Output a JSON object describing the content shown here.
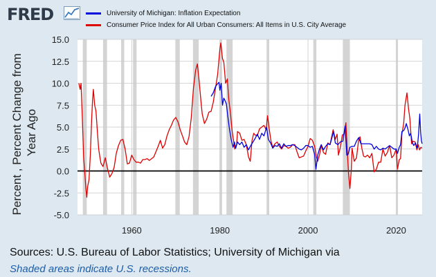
{
  "header": {
    "logo_text": "FRED",
    "logo_icon": "line-graph-icon"
  },
  "footer": {
    "sources": "Sources: U.S. Bureau of Labor Statistics; University of Michigan via",
    "recession_note": "Shaded areas indicate U.S. recessions."
  },
  "colors": {
    "background": "#dde8f0",
    "plot_background": "#ffffff",
    "recession_shade": "#d4d4d4",
    "grid": "#c8c8c8",
    "series_inflation_expectation": "#0000dd",
    "series_cpi": "#dd0000",
    "zero_line": "#000000"
  },
  "chart_data": {
    "type": "line",
    "title": "",
    "xlabel": "",
    "ylabel_lines": [
      "Percent , Percent Change from",
      "Year Ago"
    ],
    "xlim": [
      1947.7,
      2025.9
    ],
    "ylim": [
      -5.0,
      15.0
    ],
    "x_ticks": [
      1960,
      1980,
      2000,
      2020
    ],
    "x_tick_labels": [
      "1960",
      "1980",
      "2000",
      "2020"
    ],
    "y_ticks": [
      -5.0,
      -2.5,
      0.0,
      2.5,
      5.0,
      7.5,
      10.0,
      12.5,
      15.0
    ],
    "y_tick_labels": [
      "-5.0",
      "-2.5",
      "0.0",
      "2.5",
      "5.0",
      "7.5",
      "10.0",
      "12.5",
      "15.0"
    ],
    "grid": true,
    "reference_line": 0,
    "legend_position": "top",
    "recessions": [
      [
        1948.9,
        1949.8
      ],
      [
        1953.5,
        1954.4
      ],
      [
        1957.6,
        1958.3
      ],
      [
        1960.3,
        1961.1
      ],
      [
        1969.9,
        1970.9
      ],
      [
        1973.9,
        1975.2
      ],
      [
        1980.0,
        1980.5
      ],
      [
        1981.5,
        1982.9
      ],
      [
        1990.6,
        1991.2
      ],
      [
        2001.2,
        2001.9
      ],
      [
        2007.9,
        2009.5
      ],
      [
        2020.1,
        2020.4
      ]
    ],
    "series": [
      {
        "name": "University of Michigan: Inflation Expectation",
        "color": "#0000dd",
        "points": [
          [
            1978.0,
            8.5
          ],
          [
            1978.5,
            8.9
          ],
          [
            1979.0,
            9.6
          ],
          [
            1979.4,
            9.9
          ],
          [
            1979.8,
            10.1
          ],
          [
            1980.0,
            9.2
          ],
          [
            1980.3,
            10.0
          ],
          [
            1980.6,
            7.5
          ],
          [
            1980.9,
            8.3
          ],
          [
            1981.2,
            8.0
          ],
          [
            1981.5,
            7.6
          ],
          [
            1981.8,
            6.2
          ],
          [
            1982.2,
            4.7
          ],
          [
            1982.6,
            3.5
          ],
          [
            1983.0,
            2.7
          ],
          [
            1983.3,
            3.3
          ],
          [
            1983.6,
            2.6
          ],
          [
            1984.0,
            3.3
          ],
          [
            1984.5,
            3.0
          ],
          [
            1985.0,
            3.3
          ],
          [
            1985.5,
            2.7
          ],
          [
            1986.0,
            3.0
          ],
          [
            1986.5,
            2.4
          ],
          [
            1987.0,
            2.9
          ],
          [
            1987.5,
            3.3
          ],
          [
            1988.0,
            3.7
          ],
          [
            1988.5,
            4.2
          ],
          [
            1989.0,
            3.6
          ],
          [
            1989.5,
            4.3
          ],
          [
            1990.0,
            4.0
          ],
          [
            1990.6,
            5.0
          ],
          [
            1991.0,
            3.6
          ],
          [
            1991.5,
            3.2
          ],
          [
            1992.0,
            2.6
          ],
          [
            1992.5,
            2.9
          ],
          [
            1993.0,
            2.8
          ],
          [
            1993.5,
            3.1
          ],
          [
            1994.0,
            2.6
          ],
          [
            1994.5,
            3.1
          ],
          [
            1995.0,
            2.8
          ],
          [
            1995.5,
            2.9
          ],
          [
            1996.0,
            2.9
          ],
          [
            1996.5,
            3.0
          ],
          [
            1997.0,
            2.9
          ],
          [
            1997.5,
            2.7
          ],
          [
            1998.0,
            2.5
          ],
          [
            1998.5,
            2.4
          ],
          [
            1999.0,
            2.6
          ],
          [
            1999.5,
            2.9
          ],
          [
            2000.0,
            2.9
          ],
          [
            2000.5,
            2.7
          ],
          [
            2001.0,
            2.8
          ],
          [
            2001.5,
            1.9
          ],
          [
            2001.8,
            0.2
          ],
          [
            2002.2,
            1.8
          ],
          [
            2002.6,
            2.5
          ],
          [
            2003.0,
            3.0
          ],
          [
            2003.5,
            2.4
          ],
          [
            2004.0,
            2.8
          ],
          [
            2004.5,
            3.1
          ],
          [
            2005.0,
            3.0
          ],
          [
            2005.8,
            4.5
          ],
          [
            2006.2,
            3.2
          ],
          [
            2006.8,
            3.0
          ],
          [
            2007.3,
            3.3
          ],
          [
            2007.9,
            3.4
          ],
          [
            2008.4,
            5.1
          ],
          [
            2008.8,
            1.8
          ],
          [
            2009.1,
            1.9
          ],
          [
            2009.5,
            2.7
          ],
          [
            2010.0,
            2.8
          ],
          [
            2010.5,
            2.8
          ],
          [
            2011.0,
            3.4
          ],
          [
            2011.5,
            3.8
          ],
          [
            2012.0,
            3.1
          ],
          [
            2012.5,
            3.1
          ],
          [
            2013.0,
            3.1
          ],
          [
            2013.5,
            3.1
          ],
          [
            2014.0,
            3.1
          ],
          [
            2014.5,
            3.0
          ],
          [
            2015.0,
            2.5
          ],
          [
            2015.5,
            2.8
          ],
          [
            2016.0,
            2.5
          ],
          [
            2016.5,
            2.4
          ],
          [
            2017.0,
            2.6
          ],
          [
            2017.5,
            2.5
          ],
          [
            2018.0,
            2.7
          ],
          [
            2018.5,
            2.9
          ],
          [
            2019.0,
            2.7
          ],
          [
            2019.5,
            2.5
          ],
          [
            2020.0,
            2.5
          ],
          [
            2020.3,
            2.0
          ],
          [
            2020.7,
            2.7
          ],
          [
            2021.0,
            3.0
          ],
          [
            2021.3,
            4.5
          ],
          [
            2021.7,
            4.6
          ],
          [
            2022.0,
            4.9
          ],
          [
            2022.3,
            5.4
          ],
          [
            2022.7,
            4.7
          ],
          [
            2023.0,
            4.0
          ],
          [
            2023.3,
            4.3
          ],
          [
            2023.7,
            3.2
          ],
          [
            2024.0,
            2.9
          ],
          [
            2024.4,
            3.2
          ],
          [
            2024.8,
            2.6
          ],
          [
            2025.1,
            4.3
          ],
          [
            2025.35,
            6.5
          ],
          [
            2025.55,
            4.4
          ],
          [
            2025.75,
            3.4
          ],
          [
            2025.9,
            3.1
          ]
        ]
      },
      {
        "name": "Consumer Price Index for All Urban Consumers: All Items in U.S. City Average",
        "color": "#dd0000",
        "points": [
          [
            1948.0,
            10.0
          ],
          [
            1948.3,
            9.3
          ],
          [
            1948.5,
            10.0
          ],
          [
            1948.8,
            6.0
          ],
          [
            1949.1,
            1.5
          ],
          [
            1949.4,
            -0.5
          ],
          [
            1949.6,
            -2.0
          ],
          [
            1949.8,
            -3.0
          ],
          [
            1950.0,
            -1.8
          ],
          [
            1950.3,
            -1.0
          ],
          [
            1950.6,
            1.8
          ],
          [
            1950.9,
            5.8
          ],
          [
            1951.1,
            8.0
          ],
          [
            1951.3,
            9.3
          ],
          [
            1951.6,
            7.5
          ],
          [
            1951.9,
            6.8
          ],
          [
            1952.2,
            4.5
          ],
          [
            1952.5,
            2.5
          ],
          [
            1952.8,
            1.5
          ],
          [
            1953.0,
            0.9
          ],
          [
            1953.5,
            0.5
          ],
          [
            1954.0,
            1.5
          ],
          [
            1954.5,
            0.3
          ],
          [
            1955.0,
            -0.7
          ],
          [
            1955.5,
            -0.3
          ],
          [
            1956.0,
            0.4
          ],
          [
            1956.5,
            2.0
          ],
          [
            1957.0,
            2.9
          ],
          [
            1957.5,
            3.5
          ],
          [
            1958.0,
            3.6
          ],
          [
            1958.5,
            2.5
          ],
          [
            1959.0,
            0.8
          ],
          [
            1959.5,
            0.9
          ],
          [
            1960.0,
            1.8
          ],
          [
            1960.5,
            1.3
          ],
          [
            1961.0,
            1.0
          ],
          [
            1961.5,
            1.0
          ],
          [
            1962.0,
            0.9
          ],
          [
            1962.5,
            1.3
          ],
          [
            1963.0,
            1.3
          ],
          [
            1963.5,
            1.4
          ],
          [
            1964.0,
            1.2
          ],
          [
            1965.0,
            1.6
          ],
          [
            1966.0,
            2.8
          ],
          [
            1966.5,
            3.5
          ],
          [
            1967.0,
            2.6
          ],
          [
            1967.5,
            3.0
          ],
          [
            1968.0,
            4.0
          ],
          [
            1968.5,
            4.7
          ],
          [
            1969.0,
            5.2
          ],
          [
            1969.5,
            5.8
          ],
          [
            1970.0,
            6.1
          ],
          [
            1970.5,
            5.6
          ],
          [
            1971.0,
            4.7
          ],
          [
            1971.5,
            4.0
          ],
          [
            1972.0,
            3.3
          ],
          [
            1972.5,
            3.0
          ],
          [
            1973.0,
            3.9
          ],
          [
            1973.5,
            6.0
          ],
          [
            1974.0,
            9.4
          ],
          [
            1974.5,
            11.5
          ],
          [
            1974.9,
            12.2
          ],
          [
            1975.3,
            10.2
          ],
          [
            1975.7,
            8.0
          ],
          [
            1976.0,
            6.5
          ],
          [
            1976.5,
            5.4
          ],
          [
            1977.0,
            5.9
          ],
          [
            1977.5,
            6.7
          ],
          [
            1978.0,
            6.8
          ],
          [
            1978.5,
            7.8
          ],
          [
            1979.0,
            9.4
          ],
          [
            1979.5,
            11.0
          ],
          [
            1980.0,
            13.9
          ],
          [
            1980.2,
            14.6
          ],
          [
            1980.6,
            12.8
          ],
          [
            1980.9,
            12.4
          ],
          [
            1981.3,
            10.0
          ],
          [
            1981.7,
            10.5
          ],
          [
            1982.0,
            8.3
          ],
          [
            1982.4,
            6.6
          ],
          [
            1982.8,
            4.5
          ],
          [
            1983.0,
            3.8
          ],
          [
            1983.4,
            2.5
          ],
          [
            1983.8,
            3.0
          ],
          [
            1984.0,
            4.5
          ],
          [
            1984.5,
            4.3
          ],
          [
            1985.0,
            3.5
          ],
          [
            1985.5,
            3.6
          ],
          [
            1986.0,
            3.0
          ],
          [
            1986.5,
            1.6
          ],
          [
            1986.9,
            1.1
          ],
          [
            1987.3,
            3.5
          ],
          [
            1987.7,
            4.3
          ],
          [
            1988.0,
            4.1
          ],
          [
            1988.5,
            4.0
          ],
          [
            1989.0,
            4.8
          ],
          [
            1989.5,
            5.0
          ],
          [
            1990.0,
            5.2
          ],
          [
            1990.5,
            4.7
          ],
          [
            1990.8,
            6.3
          ],
          [
            1991.2,
            4.8
          ],
          [
            1991.6,
            3.4
          ],
          [
            1992.0,
            2.7
          ],
          [
            1992.5,
            3.1
          ],
          [
            1993.0,
            3.3
          ],
          [
            1993.5,
            2.8
          ],
          [
            1994.0,
            2.5
          ],
          [
            1994.5,
            2.9
          ],
          [
            1995.0,
            2.8
          ],
          [
            1995.5,
            2.6
          ],
          [
            1996.0,
            2.7
          ],
          [
            1996.5,
            3.0
          ],
          [
            1997.0,
            3.0
          ],
          [
            1997.5,
            2.2
          ],
          [
            1998.0,
            1.5
          ],
          [
            1998.5,
            1.6
          ],
          [
            1999.0,
            1.7
          ],
          [
            1999.5,
            2.3
          ],
          [
            2000.0,
            2.8
          ],
          [
            2000.5,
            3.7
          ],
          [
            2001.0,
            3.5
          ],
          [
            2001.5,
            2.8
          ],
          [
            2001.9,
            1.6
          ],
          [
            2002.2,
            1.1
          ],
          [
            2002.6,
            1.8
          ],
          [
            2003.0,
            2.9
          ],
          [
            2003.5,
            2.1
          ],
          [
            2004.0,
            1.9
          ],
          [
            2004.5,
            3.2
          ],
          [
            2005.0,
            3.0
          ],
          [
            2005.7,
            4.7
          ],
          [
            2006.2,
            3.6
          ],
          [
            2006.6,
            4.2
          ],
          [
            2006.9,
            1.8
          ],
          [
            2007.3,
            2.6
          ],
          [
            2007.8,
            4.1
          ],
          [
            2008.2,
            4.2
          ],
          [
            2008.6,
            5.5
          ],
          [
            2008.9,
            2.5
          ],
          [
            2009.2,
            -0.3
          ],
          [
            2009.5,
            -2.0
          ],
          [
            2009.8,
            0.0
          ],
          [
            2010.0,
            2.6
          ],
          [
            2010.5,
            1.1
          ],
          [
            2011.0,
            1.5
          ],
          [
            2011.5,
            3.6
          ],
          [
            2011.8,
            3.9
          ],
          [
            2012.2,
            2.6
          ],
          [
            2012.6,
            1.7
          ],
          [
            2013.0,
            1.6
          ],
          [
            2013.5,
            1.8
          ],
          [
            2014.0,
            1.5
          ],
          [
            2014.5,
            2.0
          ],
          [
            2015.0,
            -0.1
          ],
          [
            2015.5,
            0.2
          ],
          [
            2016.0,
            1.0
          ],
          [
            2016.5,
            1.0
          ],
          [
            2017.0,
            2.5
          ],
          [
            2017.5,
            1.7
          ],
          [
            2018.0,
            2.1
          ],
          [
            2018.5,
            2.9
          ],
          [
            2019.0,
            1.5
          ],
          [
            2019.5,
            1.8
          ],
          [
            2020.0,
            2.5
          ],
          [
            2020.3,
            0.2
          ],
          [
            2020.7,
            1.3
          ],
          [
            2021.0,
            1.4
          ],
          [
            2021.3,
            4.2
          ],
          [
            2021.7,
            5.4
          ],
          [
            2022.0,
            7.5
          ],
          [
            2022.45,
            8.9
          ],
          [
            2022.8,
            7.1
          ],
          [
            2023.1,
            6.0
          ],
          [
            2023.5,
            3.1
          ],
          [
            2023.9,
            3.4
          ],
          [
            2024.3,
            3.3
          ],
          [
            2024.7,
            2.4
          ],
          [
            2025.0,
            3.0
          ],
          [
            2025.3,
            2.4
          ],
          [
            2025.6,
            2.7
          ],
          [
            2025.9,
            2.6
          ]
        ]
      }
    ]
  }
}
